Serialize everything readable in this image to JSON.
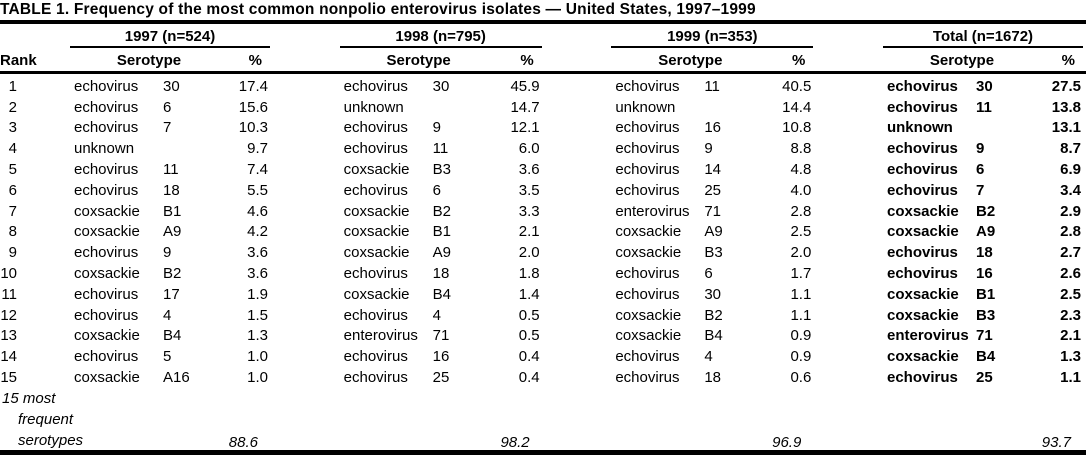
{
  "title": "TABLE 1. Frequency of the most common nonpolio enterovirus isolates — United States, 1997–1999",
  "header": {
    "rank": "Rank",
    "serotype": "Serotype",
    "pct": "%",
    "groups": [
      "1997 (n=524)",
      "1998 (n=795)",
      "1999 (n=353)",
      "Total (n=1672)"
    ]
  },
  "rows": [
    {
      "rank": "1",
      "g1": {
        "n": "echovirus",
        "d": "30",
        "p": "17.4"
      },
      "g2": {
        "n": "echovirus",
        "d": "30",
        "p": "45.9"
      },
      "g3": {
        "n": "echovirus",
        "d": "11",
        "p": "40.5"
      },
      "g4": {
        "n": "echovirus",
        "d": "30",
        "p": "27.5"
      }
    },
    {
      "rank": "2",
      "g1": {
        "n": "echovirus",
        "d": "6",
        "p": "15.6"
      },
      "g2": {
        "n": "unknown",
        "d": "",
        "p": "14.7"
      },
      "g3": {
        "n": "unknown",
        "d": "",
        "p": "14.4"
      },
      "g4": {
        "n": "echovirus",
        "d": "11",
        "p": "13.8"
      }
    },
    {
      "rank": "3",
      "g1": {
        "n": "echovirus",
        "d": "7",
        "p": "10.3"
      },
      "g2": {
        "n": "echovirus",
        "d": "9",
        "p": "12.1"
      },
      "g3": {
        "n": "echovirus",
        "d": "16",
        "p": "10.8"
      },
      "g4": {
        "n": "unknown",
        "d": "",
        "p": "13.1"
      }
    },
    {
      "rank": "4",
      "g1": {
        "n": "unknown",
        "d": "",
        "p": "9.7"
      },
      "g2": {
        "n": "echovirus",
        "d": "11",
        "p": "6.0"
      },
      "g3": {
        "n": "echovirus",
        "d": "9",
        "p": "8.8"
      },
      "g4": {
        "n": "echovirus",
        "d": "9",
        "p": "8.7"
      }
    },
    {
      "rank": "5",
      "g1": {
        "n": "echovirus",
        "d": "11",
        "p": "7.4"
      },
      "g2": {
        "n": "coxsackie",
        "d": "B3",
        "p": "3.6"
      },
      "g3": {
        "n": "echovirus",
        "d": "14",
        "p": "4.8"
      },
      "g4": {
        "n": "echovirus",
        "d": "6",
        "p": "6.9"
      }
    },
    {
      "rank": "6",
      "g1": {
        "n": "echovirus",
        "d": "18",
        "p": "5.5"
      },
      "g2": {
        "n": "echovirus",
        "d": "6",
        "p": "3.5"
      },
      "g3": {
        "n": "echovirus",
        "d": "25",
        "p": "4.0"
      },
      "g4": {
        "n": "echovirus",
        "d": "7",
        "p": "3.4"
      }
    },
    {
      "rank": "7",
      "g1": {
        "n": "coxsackie",
        "d": "B1",
        "p": "4.6"
      },
      "g2": {
        "n": "coxsackie",
        "d": "B2",
        "p": "3.3"
      },
      "g3": {
        "n": "enterovirus",
        "d": "71",
        "p": "2.8"
      },
      "g4": {
        "n": "coxsackie",
        "d": "B2",
        "p": "2.9"
      }
    },
    {
      "rank": "8",
      "g1": {
        "n": "coxsackie",
        "d": "A9",
        "p": "4.2"
      },
      "g2": {
        "n": "coxsackie",
        "d": "B1",
        "p": "2.1"
      },
      "g3": {
        "n": "coxsackie",
        "d": "A9",
        "p": "2.5"
      },
      "g4": {
        "n": "coxsackie",
        "d": "A9",
        "p": "2.8"
      }
    },
    {
      "rank": "9",
      "g1": {
        "n": "echovirus",
        "d": "9",
        "p": "3.6"
      },
      "g2": {
        "n": "coxsackie",
        "d": "A9",
        "p": "2.0"
      },
      "g3": {
        "n": "coxsackie",
        "d": "B3",
        "p": "2.0"
      },
      "g4": {
        "n": "echovirus",
        "d": "18",
        "p": "2.7"
      }
    },
    {
      "rank": "10",
      "g1": {
        "n": "coxsackie",
        "d": "B2",
        "p": "3.6"
      },
      "g2": {
        "n": "echovirus",
        "d": "18",
        "p": "1.8"
      },
      "g3": {
        "n": "echovirus",
        "d": "6",
        "p": "1.7"
      },
      "g4": {
        "n": "echovirus",
        "d": "16",
        "p": "2.6"
      }
    },
    {
      "rank": "11",
      "g1": {
        "n": "echovirus",
        "d": "17",
        "p": "1.9"
      },
      "g2": {
        "n": "coxsackie",
        "d": "B4",
        "p": "1.4"
      },
      "g3": {
        "n": "echovirus",
        "d": "30",
        "p": "1.1"
      },
      "g4": {
        "n": "coxsackie",
        "d": "B1",
        "p": "2.5"
      }
    },
    {
      "rank": "12",
      "g1": {
        "n": "echovirus",
        "d": "4",
        "p": "1.5"
      },
      "g2": {
        "n": "echovirus",
        "d": "4",
        "p": "0.5"
      },
      "g3": {
        "n": "coxsackie",
        "d": "B2",
        "p": "1.1"
      },
      "g4": {
        "n": "coxsackie",
        "d": "B3",
        "p": "2.3"
      }
    },
    {
      "rank": "13",
      "g1": {
        "n": "coxsackie",
        "d": "B4",
        "p": "1.3"
      },
      "g2": {
        "n": "enterovirus",
        "d": "71",
        "p": "0.5"
      },
      "g3": {
        "n": "coxsackie",
        "d": "B4",
        "p": "0.9"
      },
      "g4": {
        "n": "enterovirus",
        "d": "71",
        "p": "2.1"
      }
    },
    {
      "rank": "14",
      "g1": {
        "n": "echovirus",
        "d": "5",
        "p": "1.0"
      },
      "g2": {
        "n": "echovirus",
        "d": "16",
        "p": "0.4"
      },
      "g3": {
        "n": "echovirus",
        "d": "4",
        "p": "0.9"
      },
      "g4": {
        "n": "coxsackie",
        "d": "B4",
        "p": "1.3"
      }
    },
    {
      "rank": "15",
      "g1": {
        "n": "coxsackie",
        "d": "A16",
        "p": "1.0"
      },
      "g2": {
        "n": "echovirus",
        "d": "25",
        "p": "0.4"
      },
      "g3": {
        "n": "echovirus",
        "d": "18",
        "p": "0.6"
      },
      "g4": {
        "n": "echovirus",
        "d": "25",
        "p": "1.1"
      }
    }
  ],
  "footer": {
    "line1": "15 most",
    "line2": "frequent",
    "line3": "serotypes",
    "values": [
      "88.6",
      "98.2",
      "96.9",
      "93.7"
    ]
  },
  "colors": {
    "text": "#000000",
    "background": "#ffffff"
  }
}
